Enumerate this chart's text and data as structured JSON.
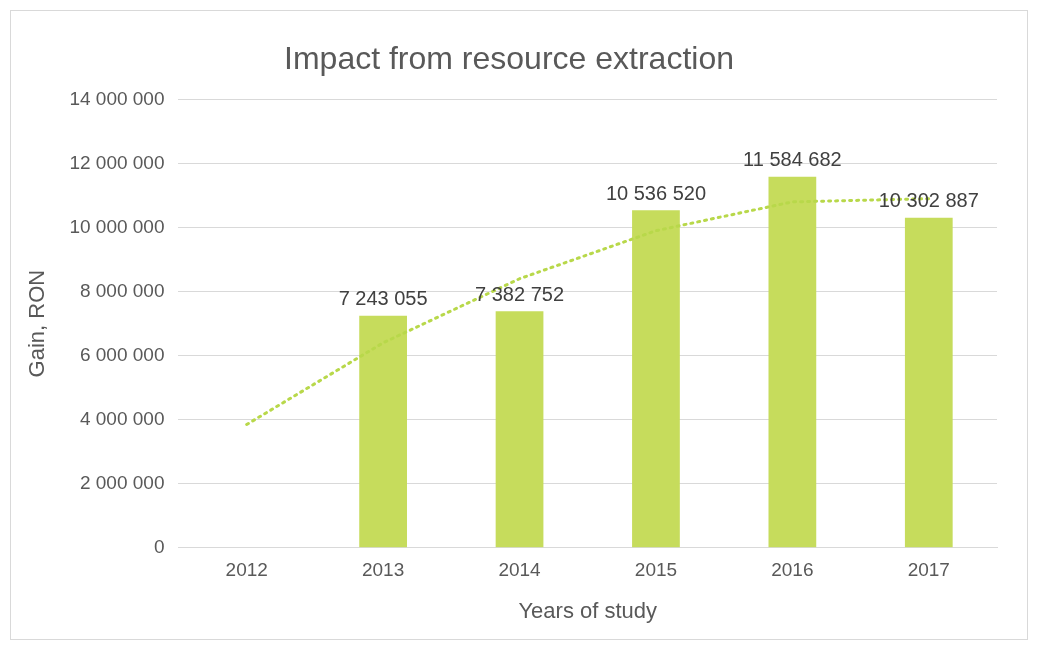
{
  "chart_data": {
    "type": "bar",
    "title": "Impact from resource extraction",
    "xlabel": "Years of study",
    "ylabel": "Gain, RON",
    "categories": [
      "2012",
      "2013",
      "2014",
      "2015",
      "2016",
      "2017"
    ],
    "series": [
      {
        "color": "#c6dc5c",
        "values": [
          null,
          7243055,
          7382752,
          10536520,
          11584682,
          10302887
        ],
        "value_labels": [
          null,
          "7 243 055",
          "7 382 752",
          "10 536 520",
          "11 584 682",
          "10 302 887"
        ]
      },
      {
        "type": "line",
        "color": "#b8d84a",
        "line_style": "dotted",
        "marker": "none",
        "values": [
          3850000,
          6400000,
          8400000,
          9900000,
          10800000,
          10900000
        ]
      }
    ],
    "ylim": [
      0,
      14000000
    ],
    "yticks": [
      {
        "value": 0,
        "label": "0"
      },
      {
        "value": 2000000,
        "label": "2 000 000"
      },
      {
        "value": 4000000,
        "label": "4 000 000"
      },
      {
        "value": 6000000,
        "label": "6 000 000"
      },
      {
        "value": 8000000,
        "label": "8 000 000"
      },
      {
        "value": 10000000,
        "label": "10 000 000"
      },
      {
        "value": 12000000,
        "label": "12 000 000"
      },
      {
        "value": 14000000,
        "label": "14 000 000"
      }
    ],
    "grid": "y",
    "legend": false
  }
}
